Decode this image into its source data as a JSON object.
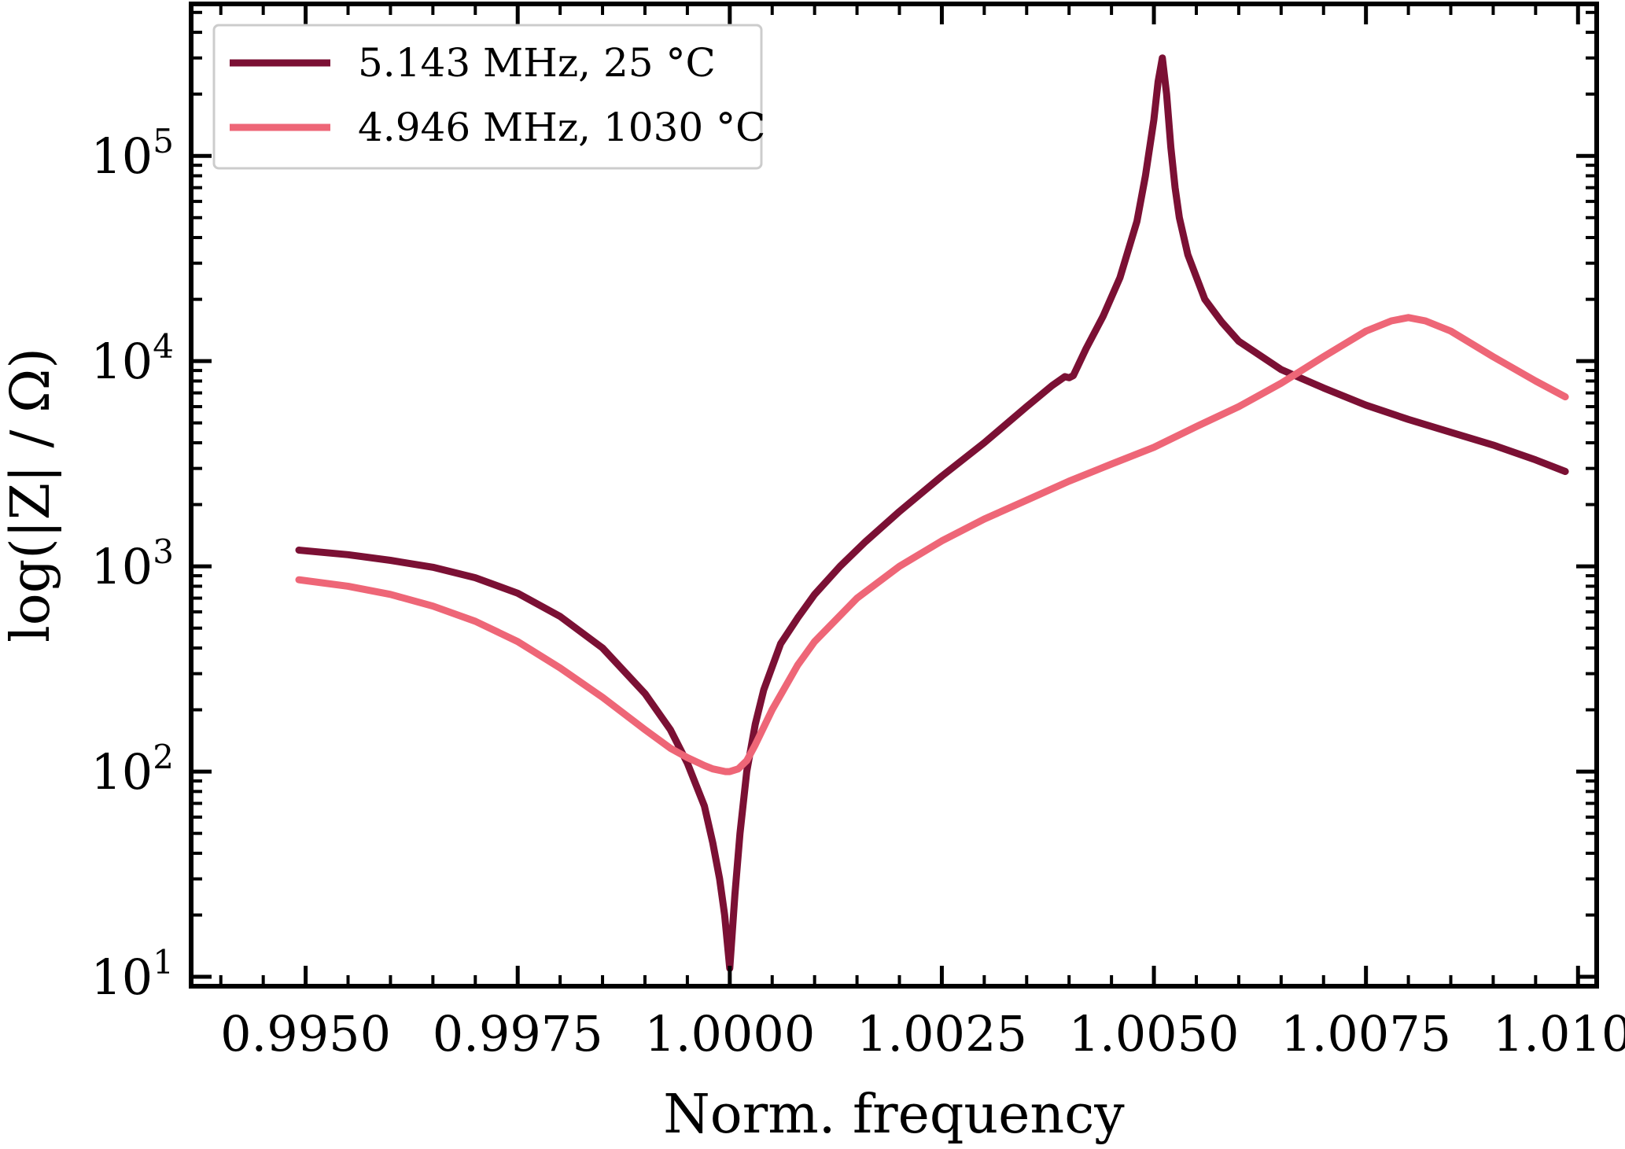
{
  "chart_data": {
    "type": "line",
    "title": "",
    "xlabel": "Norm. frequency",
    "ylabel": "log(|Z| / Ω)",
    "xlim": [
      0.99365,
      1.01022
    ],
    "ylim": [
      9,
      550000
    ],
    "yscale": "log",
    "x_ticks": [
      {
        "value": 0.995,
        "label": "0.9950"
      },
      {
        "value": 0.9975,
        "label": "0.9975"
      },
      {
        "value": 1.0,
        "label": "1.0000"
      },
      {
        "value": 1.0025,
        "label": "1.0025"
      },
      {
        "value": 1.005,
        "label": "1.0050"
      },
      {
        "value": 1.0075,
        "label": "1.0075"
      },
      {
        "value": 1.01,
        "label": "1.0100"
      }
    ],
    "y_ticks": [
      {
        "value": 10,
        "base": "10",
        "exp": "1"
      },
      {
        "value": 100,
        "base": "10",
        "exp": "2"
      },
      {
        "value": 1000,
        "base": "10",
        "exp": "3"
      },
      {
        "value": 10000,
        "base": "10",
        "exp": "4"
      },
      {
        "value": 100000,
        "base": "10",
        "exp": "5"
      }
    ],
    "legend_position": "top-left",
    "series": [
      {
        "name": "5.143 MHz, 25 °C",
        "color": "#7b1034",
        "x": [
          0.99492,
          0.9955,
          0.996,
          0.9965,
          0.997,
          0.9975,
          0.998,
          0.9985,
          0.999,
          0.9993,
          0.9995,
          0.9997,
          0.9998,
          0.99988,
          0.99994,
          1.0,
          1.00006,
          1.00012,
          1.0002,
          1.0003,
          1.0004,
          1.0006,
          1.0008,
          1.001,
          1.0013,
          1.0016,
          1.002,
          1.0025,
          1.003,
          1.0035,
          1.0038,
          1.00395,
          1.004,
          1.00405,
          1.0041,
          1.0042,
          1.0044,
          1.0046,
          1.0048,
          1.0049,
          1.005,
          1.00505,
          1.0051,
          1.00515,
          1.0052,
          1.00525,
          1.0053,
          1.0054,
          1.0056,
          1.0058,
          1.006,
          1.0065,
          1.007,
          1.0075,
          1.008,
          1.0085,
          1.009,
          1.0095,
          1.00985
        ],
        "values": [
          1200,
          1140,
          1070,
          990,
          880,
          740,
          570,
          400,
          240,
          160,
          110,
          68,
          45,
          30,
          20,
          11,
          25,
          50,
          100,
          170,
          250,
          420,
          560,
          730,
          1000,
          1320,
          1850,
          2750,
          4000,
          6000,
          7600,
          8400,
          8300,
          8500,
          9400,
          11500,
          16500,
          25500,
          48000,
          80000,
          150000,
          230000,
          300000,
          200000,
          110000,
          70000,
          50000,
          33000,
          20000,
          15500,
          12500,
          9100,
          7400,
          6100,
          5200,
          4500,
          3900,
          3300,
          2900
        ]
      },
      {
        "name": "4.946 MHz, 1030 °C",
        "color": "#ee6677",
        "x": [
          0.99492,
          0.9955,
          0.996,
          0.9965,
          0.997,
          0.9975,
          0.998,
          0.9985,
          0.999,
          0.9993,
          0.9995,
          0.9997,
          0.9998,
          0.99995,
          1.0,
          1.0001,
          1.0002,
          1.0003,
          1.0005,
          1.0008,
          1.001,
          1.0015,
          1.002,
          1.0025,
          1.003,
          1.0035,
          1.004,
          1.0045,
          1.005,
          1.0055,
          1.006,
          1.0065,
          1.007,
          1.0075,
          1.0078,
          1.008,
          1.0082,
          1.0085,
          1.009,
          1.0095,
          1.00985
        ],
        "values": [
          860,
          800,
          730,
          640,
          540,
          430,
          320,
          230,
          160,
          130,
          117,
          107,
          103,
          100,
          100,
          103,
          113,
          135,
          200,
          330,
          430,
          700,
          1000,
          1330,
          1700,
          2100,
          2600,
          3150,
          3800,
          4800,
          6000,
          7800,
          10500,
          14000,
          15700,
          16300,
          15700,
          14000,
          10500,
          8000,
          6700
        ]
      }
    ]
  }
}
